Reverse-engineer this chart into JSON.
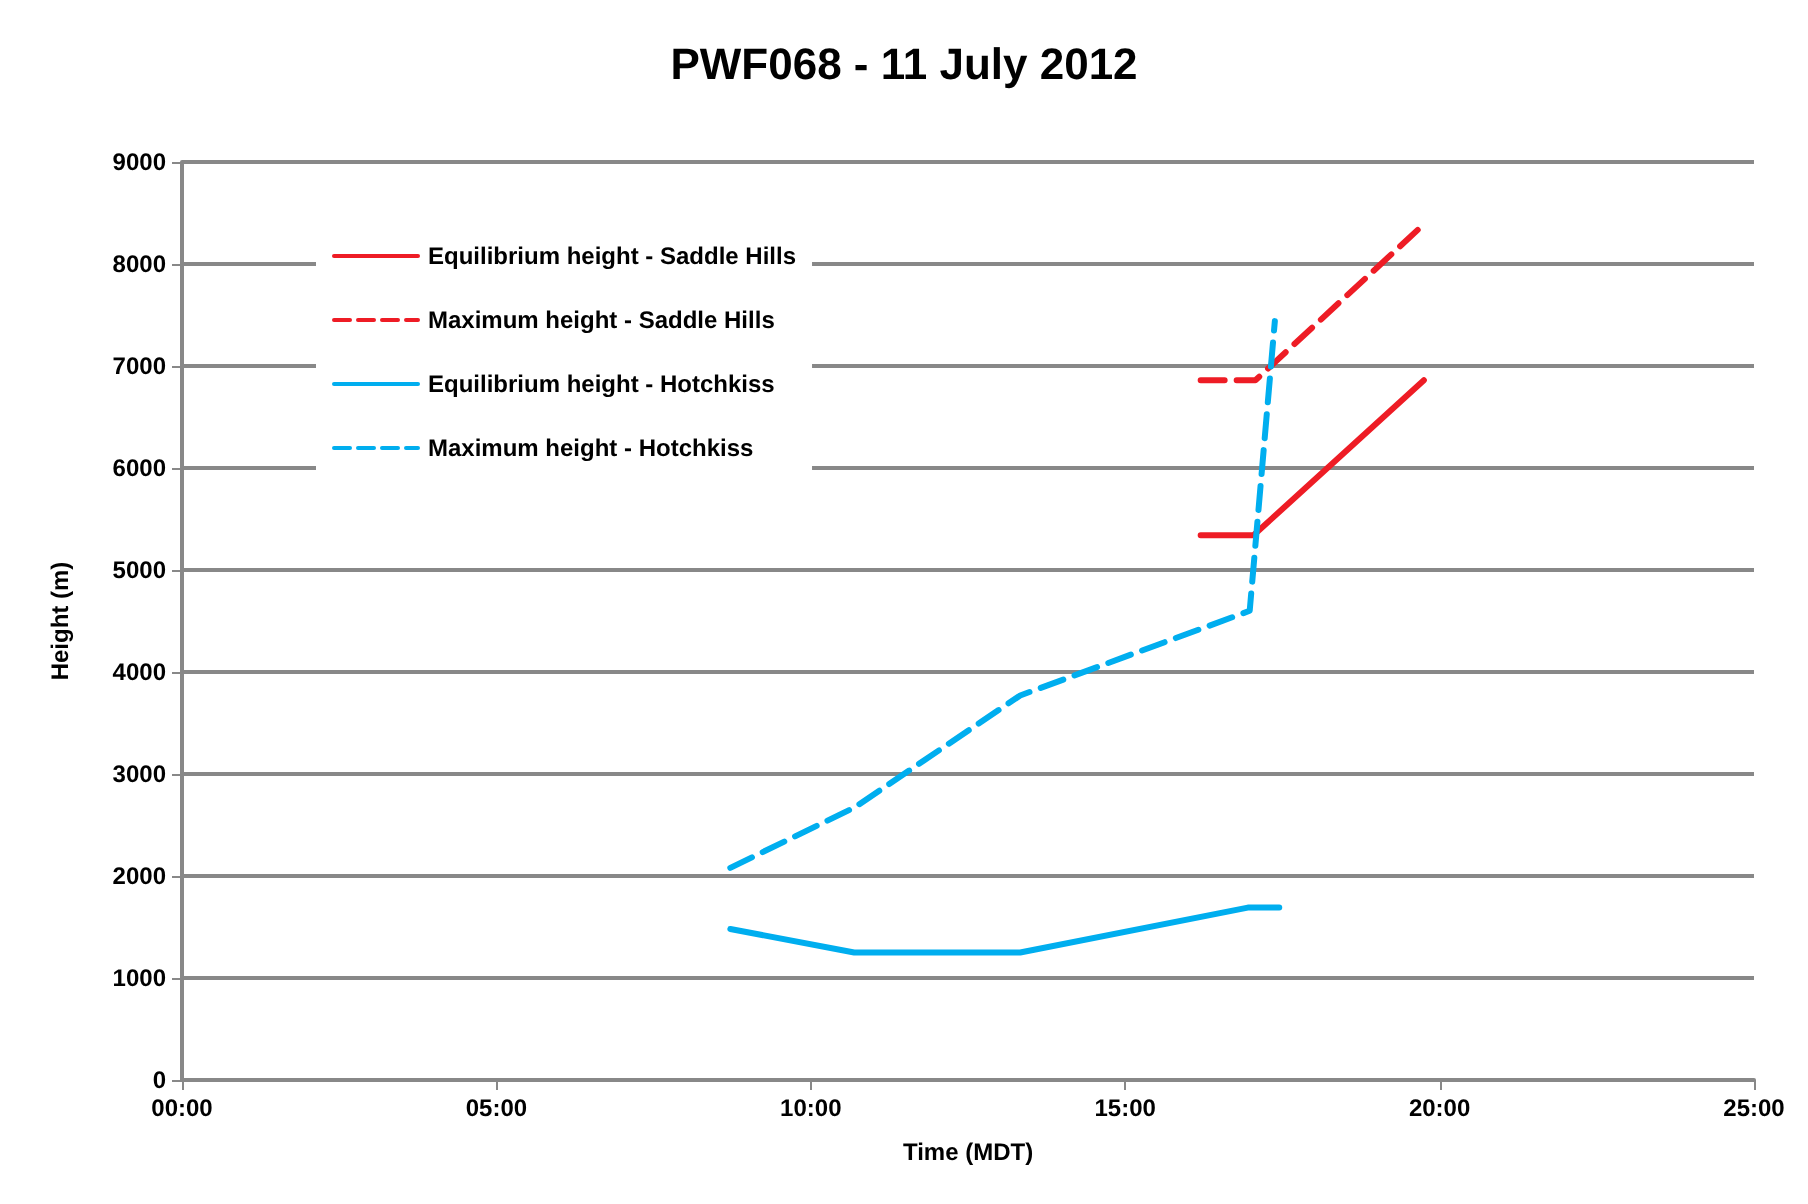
{
  "chart_data": {
    "type": "line",
    "title": "PWF068 - 11 July 2012",
    "xlabel": "Time (MDT)",
    "ylabel": "Height (m)",
    "xlim": [
      0,
      25
    ],
    "xticks": [
      {
        "value": 0,
        "label": "00:00"
      },
      {
        "value": 5,
        "label": "05:00"
      },
      {
        "value": 10,
        "label": "10:00"
      },
      {
        "value": 15,
        "label": "15:00"
      },
      {
        "value": 20,
        "label": "20:00"
      },
      {
        "value": 25,
        "label": "25:00"
      }
    ],
    "ylim": [
      0,
      9000
    ],
    "yticks": [
      0,
      1000,
      2000,
      3000,
      4000,
      5000,
      6000,
      7000,
      8000,
      9000
    ],
    "grid": "y",
    "legend": "top left",
    "marker": "none",
    "series": [
      {
        "name": "Equilibrium height - Saddle Hills",
        "color": "#ee1c25",
        "line_style": "solid",
        "x": [
          16.2,
          17.04,
          19.75
        ],
        "values": [
          5340,
          5340,
          6860
        ]
      },
      {
        "name": "Maximum height - Saddle Hills",
        "color": "#ee1c25",
        "line_style": "dashed",
        "x": [
          16.2,
          17.07,
          19.75
        ],
        "values": [
          6860,
          6860,
          8390
        ]
      },
      {
        "name": "Equilibrium height - Hotchkiss",
        "color": "#00aeef",
        "line_style": "solid",
        "x": [
          8.72,
          10.69,
          13.33,
          16.95,
          17.45
        ],
        "values": [
          1480,
          1250,
          1250,
          1690,
          1690
        ]
      },
      {
        "name": "Maximum height - Hotchkiss",
        "color": "#00aeef",
        "line_style": "dashed",
        "x": [
          8.72,
          10.69,
          13.33,
          16.98,
          17.38
        ],
        "values": [
          2080,
          2670,
          3770,
          4600,
          7440
        ]
      }
    ]
  }
}
